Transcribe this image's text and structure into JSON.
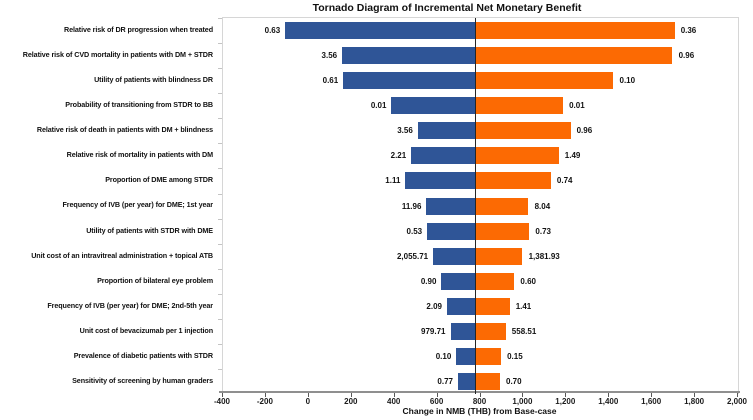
{
  "chart_data": {
    "type": "bar",
    "variant": "tornado",
    "title": "Tornado Diagram of Incremental Net Monetary Benefit",
    "xlabel": "Change in NMB (THB) from Base-case",
    "xlim": [
      -400,
      2000
    ],
    "grid": false,
    "legend": false,
    "base_case_nmb": 775,
    "x_ticks": [
      {
        "value": -400,
        "label": "-400"
      },
      {
        "value": -200,
        "label": "-200"
      },
      {
        "value": 0,
        "label": "0"
      },
      {
        "value": 200,
        "label": "200"
      },
      {
        "value": 400,
        "label": "400"
      },
      {
        "value": 600,
        "label": "600"
      },
      {
        "value": 800,
        "label": "800"
      },
      {
        "value": 1000,
        "label": "1,000"
      },
      {
        "value": 1200,
        "label": "1,200"
      },
      {
        "value": 1400,
        "label": "1,400"
      },
      {
        "value": 1600,
        "label": "1,600"
      },
      {
        "value": 1800,
        "label": "1,800"
      },
      {
        "value": 2000,
        "label": "2,000"
      }
    ],
    "colors": {
      "low_bar": "#2F5597",
      "high_bar": "#FC6A03",
      "base_line": "#262626",
      "plot_border": "#d6d6d6",
      "axis_line": "#8f8f8f",
      "tick": "#595959"
    },
    "rows": [
      {
        "label": "Relative risk of DR progression when treated",
        "low_label": "0.63",
        "high_label": "0.36",
        "nmb_low": -110,
        "nmb_high": 1705
      },
      {
        "label": "Relative risk of CVD mortality in patients with DM + STDR",
        "low_label": "3.56",
        "high_label": "0.96",
        "nmb_low": 155,
        "nmb_high": 1695
      },
      {
        "label": "Utility of patients with blindness DR",
        "low_label": "0.61",
        "high_label": "0.10",
        "nmb_low": 160,
        "nmb_high": 1420
      },
      {
        "label": "Probability of transitioning from STDR to BB",
        "low_label": "0.01",
        "high_label": "0.01",
        "nmb_low": 385,
        "nmb_high": 1185
      },
      {
        "label": "Relative risk of death in patients with DM + blindness",
        "low_label": "3.56",
        "high_label": "0.96",
        "nmb_low": 508,
        "nmb_high": 1220
      },
      {
        "label": "Relative risk of mortality in patients with DM",
        "low_label": "2.21",
        "high_label": "1.49",
        "nmb_low": 477,
        "nmb_high": 1165
      },
      {
        "label": "Proportion of DME among STDR",
        "low_label": "1.11",
        "high_label": "0.74",
        "nmb_low": 450,
        "nmb_high": 1128
      },
      {
        "label": "Frequency of IVB (per year) for DME; 1st year",
        "low_label": "11.96",
        "high_label": "8.04",
        "nmb_low": 548,
        "nmb_high": 1024
      },
      {
        "label": "Utility of patients with STDR with DME",
        "low_label": "0.53",
        "high_label": "0.73",
        "nmb_low": 551,
        "nmb_high": 1028
      },
      {
        "label": "Unit cost of an intravitreal administration + topical ATB",
        "low_label": "2,055.71",
        "high_label": "1,381.93",
        "nmb_low": 579,
        "nmb_high": 996
      },
      {
        "label": "Proportion of bilateral eye problem",
        "low_label": "0.90",
        "high_label": "0.60",
        "nmb_low": 618,
        "nmb_high": 958
      },
      {
        "label": "Frequency of IVB (per year) for DME; 2nd-5th year",
        "low_label": "2.09",
        "high_label": "1.41",
        "nmb_low": 644,
        "nmb_high": 936
      },
      {
        "label": "Unit cost of bevacizumab per 1 injection",
        "low_label": "979.71",
        "high_label": "558.51",
        "nmb_low": 660,
        "nmb_high": 918
      },
      {
        "label": "Prevalence of diabetic patients with STDR",
        "low_label": "0.10",
        "high_label": "0.15",
        "nmb_low": 687,
        "nmb_high": 896
      },
      {
        "label": "Sensitivity of screening by human graders",
        "low_label": "0.77",
        "high_label": "0.70",
        "nmb_low": 695,
        "nmb_high": 891
      }
    ]
  }
}
